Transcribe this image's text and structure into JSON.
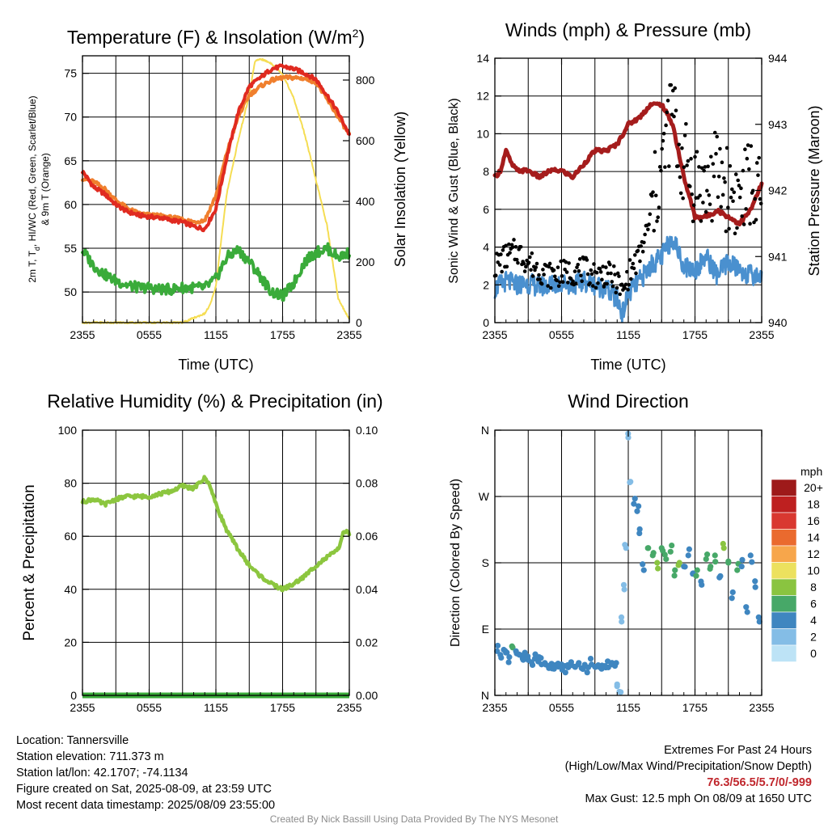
{
  "chart_data": [
    {
      "type": "line",
      "title": "Temperature (F) & Insolation (W/m",
      "title_superscript": "2",
      "title_suffix": ")",
      "xlabel": "Time (UTC)",
      "ylabel_lines": [
        "2m T, T",
        "d",
        ", HI/WC (Red, Green, Scarlet/Blue)",
        "& 9m T (Orange)"
      ],
      "ylabel_line1": "2m T, T",
      "ylabel_line1_sub": "d",
      "ylabel_line1_rest": ", HI/WC (Red, Green, Scarlet/Blue)",
      "ylabel_line2": "& 9m T (Orange)",
      "y2label": "Solar Insolation (Yellow)",
      "x_ticks": [
        "2355",
        "0555",
        "1155",
        "1755",
        "2355"
      ],
      "xlim": [
        0,
        24
      ],
      "ylim": [
        46.5,
        77
      ],
      "y_ticks": [
        50,
        55,
        60,
        65,
        70,
        75
      ],
      "y2lim": [
        0,
        880
      ],
      "y2_ticks": [
        0,
        200,
        400,
        600,
        800
      ],
      "grid": true,
      "series": [
        {
          "name": "2m T",
          "color": "#e02a20",
          "axis": "left",
          "x": [
            0,
            1,
            2,
            3,
            4,
            5,
            6,
            7,
            8,
            9,
            10,
            11,
            12,
            13,
            14,
            15,
            16,
            17,
            18,
            19,
            20,
            21,
            22,
            23,
            24
          ],
          "y": [
            63.8,
            62.0,
            61.2,
            60.0,
            59.2,
            58.8,
            58.6,
            58.5,
            58.2,
            58.0,
            57.5,
            57.2,
            59.5,
            65.5,
            70.5,
            73.5,
            74.5,
            75.5,
            75.8,
            75.5,
            75.0,
            74.3,
            72.5,
            70.5,
            68.0
          ]
        },
        {
          "name": "9m T",
          "color": "#f07f2d",
          "axis": "left",
          "x": [
            0,
            1,
            2,
            3,
            4,
            5,
            6,
            7,
            8,
            9,
            10,
            11,
            12,
            13,
            14,
            15,
            16,
            17,
            18,
            19,
            20,
            21,
            22,
            23,
            24
          ],
          "y": [
            63.0,
            62.6,
            61.8,
            60.5,
            59.6,
            59.0,
            58.8,
            58.7,
            58.5,
            58.3,
            58.0,
            58.2,
            61.0,
            66.0,
            70.0,
            72.5,
            73.5,
            74.2,
            74.5,
            74.5,
            74.4,
            74.0,
            72.0,
            70.0,
            68.0
          ]
        },
        {
          "name": "2m Td",
          "color": "#3aab3a",
          "axis": "left",
          "x": [
            0,
            1,
            2,
            3,
            4,
            5,
            6,
            7,
            8,
            9,
            10,
            11,
            12,
            13,
            14,
            15,
            16,
            17,
            18,
            19,
            20,
            21,
            22,
            23,
            24
          ],
          "y": [
            54.8,
            53.0,
            52.0,
            51.3,
            50.8,
            50.5,
            50.5,
            50.3,
            50.3,
            50.5,
            50.5,
            50.5,
            51.5,
            54.0,
            54.8,
            53.5,
            51.8,
            50.0,
            49.5,
            51.0,
            53.5,
            54.5,
            55.0,
            54.0,
            54.5
          ]
        },
        {
          "name": "Solar Insolation",
          "color": "#f5dd53",
          "axis": "right",
          "x": [
            0,
            5,
            9,
            11,
            11.5,
            12,
            12.5,
            13,
            14,
            15,
            15.5,
            16,
            17,
            18,
            19,
            20,
            21,
            22,
            22.5,
            23,
            24
          ],
          "y": [
            0,
            0,
            0,
            30,
            60,
            120,
            280,
            430,
            600,
            750,
            860,
            870,
            855,
            820,
            740,
            620,
            470,
            320,
            200,
            80,
            10
          ]
        }
      ]
    },
    {
      "type": "line",
      "title": "Winds (mph) & Pressure (mb)",
      "xlabel": "Time (UTC)",
      "ylabel": "Sonic Wind & Gust (Blue, Black)",
      "y2label": "Station Pressure (Maroon)",
      "x_ticks": [
        "2355",
        "0555",
        "1155",
        "1755",
        "2355"
      ],
      "xlim": [
        0,
        24
      ],
      "ylim": [
        0,
        14
      ],
      "y_ticks": [
        0,
        2,
        4,
        6,
        8,
        10,
        12,
        14
      ],
      "y2lim": [
        940,
        944
      ],
      "y2_ticks": [
        940,
        941,
        942,
        943,
        944
      ],
      "grid": true,
      "series": [
        {
          "name": "Sonic Wind",
          "color": "#4a90cf",
          "axis": "left",
          "x": [
            0,
            1,
            2,
            3,
            4,
            5,
            6,
            7,
            8,
            9,
            10,
            11,
            11.5,
            12,
            13,
            14,
            15,
            16,
            17,
            18,
            19,
            20,
            21,
            22,
            23,
            24
          ],
          "y": [
            1.8,
            2.2,
            2.0,
            2.1,
            1.9,
            2.0,
            2.1,
            2.0,
            2.2,
            2.0,
            1.8,
            1.2,
            0.5,
            1.5,
            2.2,
            3.0,
            3.5,
            4.5,
            3.0,
            2.8,
            3.5,
            2.5,
            3.2,
            2.8,
            2.5,
            2.5
          ]
        },
        {
          "name": "Gust",
          "color": "#000000",
          "axis": "left",
          "x": [
            0,
            1,
            2,
            3,
            4,
            5,
            6,
            7,
            8,
            9,
            10,
            11,
            11.5,
            12,
            13,
            14,
            14.5,
            15,
            15.5,
            16,
            16.5,
            17,
            18,
            19,
            20,
            21,
            22,
            23,
            24
          ],
          "y": [
            3.0,
            3.5,
            3.8,
            3.2,
            2.8,
            2.5,
            2.6,
            2.7,
            2.8,
            2.5,
            2.6,
            2.2,
            1.5,
            2.5,
            3.5,
            5.5,
            7.0,
            8.0,
            10.0,
            11.5,
            9.0,
            8.5,
            7.5,
            7.0,
            8.0,
            7.0,
            6.5,
            7.5,
            6.0
          ]
        },
        {
          "name": "Station Pressure",
          "color": "#a51c1c",
          "axis": "right",
          "x": [
            0,
            0.5,
            1,
            1.5,
            2,
            3,
            4,
            5,
            6,
            7,
            8,
            9,
            10,
            11,
            12,
            13,
            14,
            15,
            16,
            16.5,
            17,
            18,
            19,
            20,
            21,
            22,
            23,
            24
          ],
          "y": [
            942.2,
            942.3,
            942.6,
            942.4,
            942.3,
            942.3,
            942.2,
            942.3,
            942.3,
            942.2,
            942.4,
            942.6,
            942.6,
            942.7,
            943.0,
            943.1,
            943.3,
            943.3,
            943.0,
            942.6,
            942.2,
            941.6,
            941.6,
            941.7,
            941.6,
            941.5,
            941.7,
            942.1
          ]
        }
      ]
    },
    {
      "type": "line",
      "title": "Relative Humidity (%) & Precipitation (in)",
      "xlabel": "",
      "ylabel": "Percent & Precipitation",
      "x_ticks": [
        "2355",
        "0555",
        "1155",
        "1755",
        "2355"
      ],
      "xlim": [
        0,
        24
      ],
      "ylim": [
        0,
        100
      ],
      "y_ticks": [
        0,
        20,
        40,
        60,
        80,
        100
      ],
      "y2lim": [
        0,
        0.1
      ],
      "y2_ticks": [
        "0.00",
        "0.02",
        "0.04",
        "0.06",
        "0.08",
        "0.10"
      ],
      "grid": true,
      "series": [
        {
          "name": "Relative Humidity",
          "color": "#8cc63f",
          "axis": "left",
          "x": [
            0,
            1,
            2,
            3,
            4,
            5,
            6,
            7,
            8,
            9,
            10,
            11,
            11.5,
            12,
            13,
            14,
            15,
            16,
            17,
            18,
            19,
            20,
            21,
            22,
            23,
            23.5,
            24
          ],
          "y": [
            73,
            74,
            72,
            74,
            75,
            75,
            75,
            76,
            77,
            79,
            78,
            82,
            79,
            72,
            62,
            55,
            49,
            45,
            42,
            40,
            42,
            45,
            49,
            52,
            55,
            62,
            61
          ]
        },
        {
          "name": "Precipitation",
          "color": "#3aab3a",
          "axis": "right",
          "x": [
            0,
            24
          ],
          "y": [
            0,
            0
          ]
        }
      ]
    },
    {
      "type": "scatter",
      "title": "Wind Direction",
      "ylabel": "Direction (Colored By Speed)",
      "x_ticks": [
        "2355",
        "0555",
        "1155",
        "1755",
        "2355"
      ],
      "xlim": [
        0,
        24
      ],
      "ylim": [
        0,
        360
      ],
      "y_ticks": [
        "N",
        "E",
        "S",
        "W",
        "N"
      ],
      "y_tick_values": [
        0,
        90,
        180,
        270,
        360
      ],
      "grid": true,
      "points": [
        [
          0.2,
          60,
          2
        ],
        [
          0.5,
          55,
          2
        ],
        [
          0.8,
          62,
          2
        ],
        [
          1.0,
          58,
          2
        ],
        [
          1.3,
          52,
          2
        ],
        [
          1.6,
          65,
          3
        ],
        [
          1.9,
          60,
          2
        ],
        [
          2.2,
          55,
          2
        ],
        [
          2.5,
          50,
          2
        ],
        [
          2.7,
          58,
          2
        ],
        [
          3.0,
          48,
          2
        ],
        [
          3.3,
          45,
          2
        ],
        [
          3.6,
          50,
          2
        ],
        [
          3.9,
          46,
          2
        ],
        [
          4.2,
          42,
          2
        ],
        [
          4.5,
          44,
          2
        ],
        [
          4.8,
          40,
          2
        ],
        [
          5.1,
          43,
          2
        ],
        [
          5.4,
          41,
          2
        ],
        [
          5.7,
          39,
          2
        ],
        [
          6.0,
          42,
          2
        ],
        [
          6.3,
          40,
          2
        ],
        [
          6.6,
          38,
          2
        ],
        [
          6.9,
          41,
          2
        ],
        [
          7.2,
          39,
          2
        ],
        [
          7.5,
          42,
          2
        ],
        [
          7.8,
          37,
          2
        ],
        [
          8.1,
          40,
          2
        ],
        [
          8.4,
          38,
          2
        ],
        [
          8.7,
          42,
          2
        ],
        [
          9.0,
          39,
          2
        ],
        [
          9.3,
          41,
          2
        ],
        [
          9.6,
          36,
          2
        ],
        [
          9.9,
          40,
          2
        ],
        [
          10.2,
          38,
          2
        ],
        [
          10.5,
          42,
          2
        ],
        [
          10.8,
          40,
          2
        ],
        [
          11.0,
          15,
          1
        ],
        [
          11.2,
          5,
          1
        ],
        [
          11.4,
          100,
          1
        ],
        [
          11.6,
          150,
          1
        ],
        [
          11.8,
          200,
          1
        ],
        [
          12.0,
          350,
          1
        ],
        [
          12.2,
          290,
          1
        ],
        [
          12.5,
          260,
          2
        ],
        [
          12.8,
          250,
          2
        ],
        [
          13.0,
          220,
          2
        ],
        [
          13.4,
          170,
          2
        ],
        [
          13.8,
          200,
          3
        ],
        [
          14.2,
          190,
          3
        ],
        [
          14.6,
          180,
          4
        ],
        [
          15.0,
          200,
          3
        ],
        [
          15.4,
          185,
          3
        ],
        [
          15.8,
          195,
          3
        ],
        [
          16.2,
          170,
          3
        ],
        [
          16.6,
          180,
          4
        ],
        [
          17.0,
          175,
          2
        ],
        [
          17.4,
          190,
          2
        ],
        [
          17.8,
          165,
          2
        ],
        [
          18.2,
          170,
          3
        ],
        [
          18.6,
          150,
          2
        ],
        [
          19.0,
          185,
          3
        ],
        [
          19.4,
          175,
          3
        ],
        [
          19.8,
          190,
          3
        ],
        [
          20.2,
          160,
          2
        ],
        [
          20.6,
          200,
          4
        ],
        [
          21.0,
          180,
          3
        ],
        [
          21.4,
          140,
          2
        ],
        [
          21.8,
          170,
          3
        ],
        [
          22.2,
          175,
          2
        ],
        [
          22.6,
          120,
          2
        ],
        [
          23.0,
          190,
          2
        ],
        [
          23.4,
          155,
          2
        ],
        [
          23.8,
          100,
          2
        ]
      ],
      "colorbar": {
        "title": "mph",
        "labels": [
          "20+",
          "18",
          "16",
          "14",
          "12",
          "10",
          "8",
          "6",
          "4",
          "2",
          "0"
        ],
        "colors": [
          "#9e1a1a",
          "#be2020",
          "#d93830",
          "#ea6a2e",
          "#f7a64b",
          "#ece15e",
          "#8ac440",
          "#47a868",
          "#3f86c0",
          "#84bde6",
          "#bde3f6"
        ]
      }
    }
  ],
  "info": {
    "location": "Location: Tannersville",
    "elevation": "Station elevation: 711.373 m",
    "latlon": "Station lat/lon: 42.1707; -74.1134",
    "created": "Figure created on Sat, 2025-08-09, at 23:59 UTC",
    "recent": "Most recent data timestamp: 2025/08/09 23:55:00"
  },
  "extremes": {
    "title": "Extremes For Past 24 Hours",
    "subtitle": "(High/Low/Max Wind/Precipitation/Snow Depth)",
    "values": "76.3/56.5/5.7/0/-999",
    "gust": "Max Gust: 12.5 mph On 08/09 at 1650 UTC"
  },
  "footer": "Created By Nick Bassill Using Data Provided By The NYS Mesonet",
  "colors": {
    "grid": "#000000",
    "extremes": "#c0272d"
  }
}
